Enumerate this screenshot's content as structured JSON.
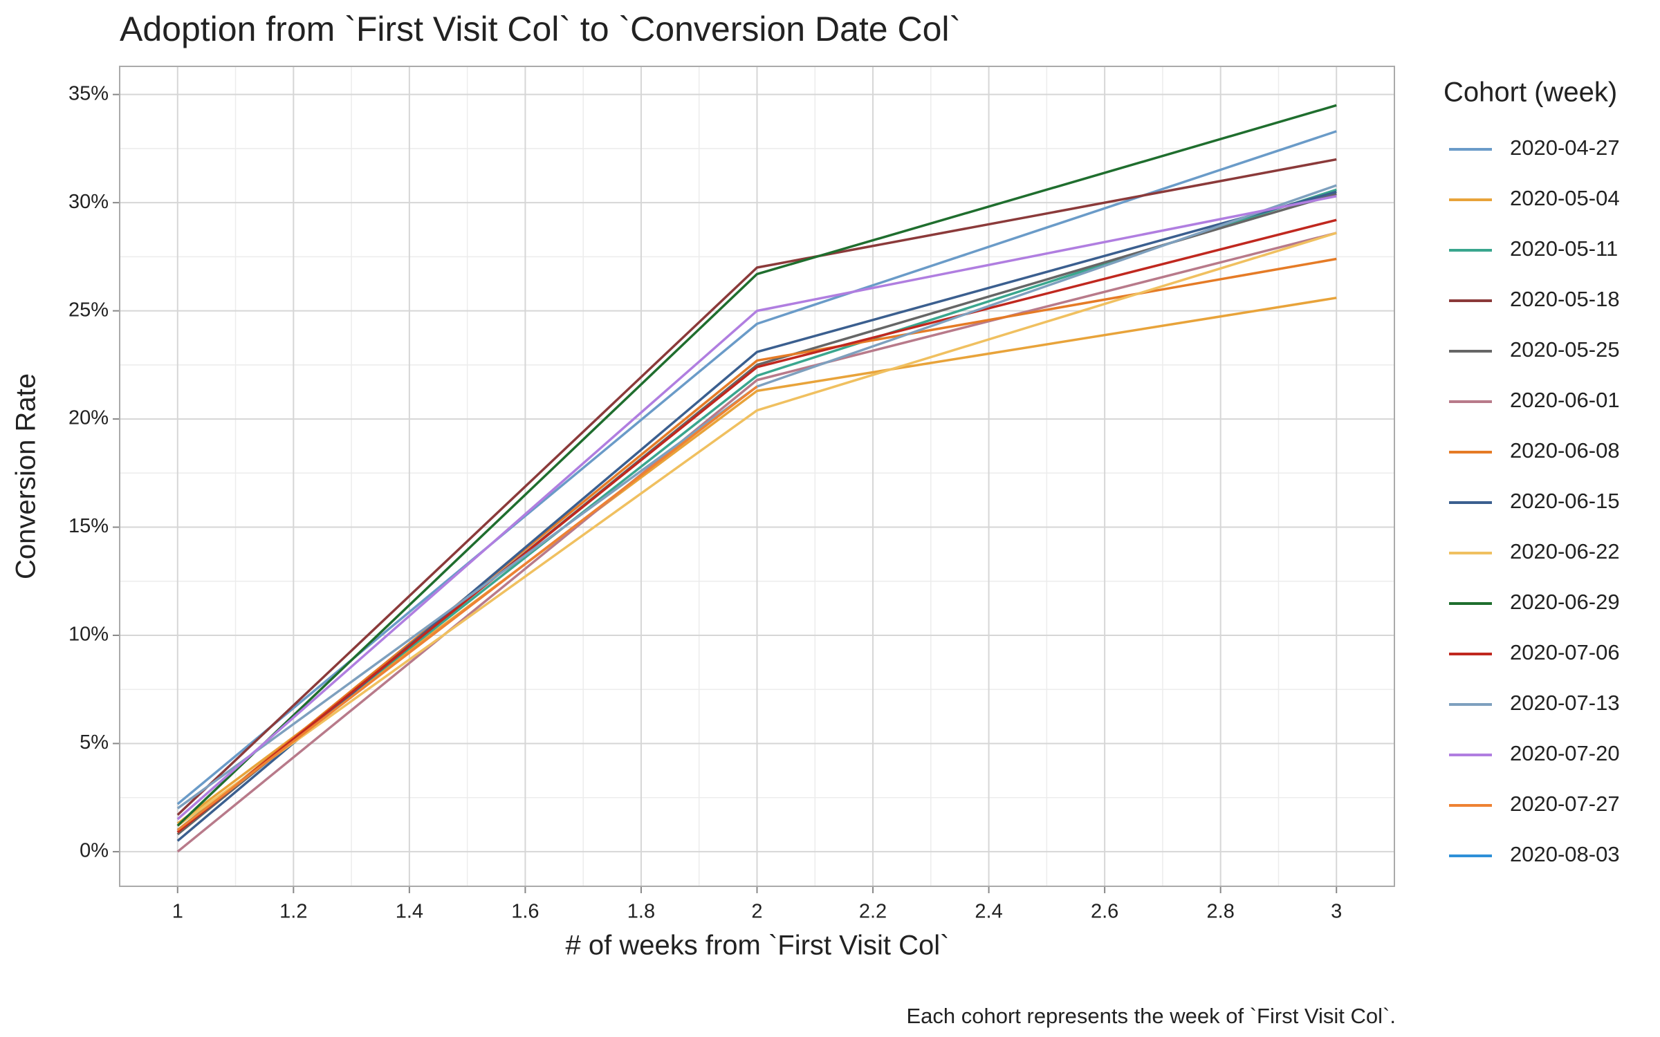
{
  "chart_data": {
    "type": "line",
    "title": "Adoption from `First Visit Col` to `Conversion Date Col`",
    "xlabel": "# of weeks from `First Visit Col`",
    "ylabel": "Conversion Rate",
    "caption": "Each cohort represents the week of `First Visit Col`.",
    "legend_title": "Cohort (week)",
    "legend": "right",
    "grid": true,
    "x": [
      1,
      2,
      3
    ],
    "xlim": [
      0.9,
      3.1
    ],
    "xticks": [
      1,
      1.2,
      1.4,
      1.6,
      1.8,
      2,
      2.2,
      2.4,
      2.6,
      2.8,
      3
    ],
    "ylim": [
      -1.6,
      36.3
    ],
    "yticks": [
      {
        "value": 0,
        "label": "0%"
      },
      {
        "value": 5,
        "label": "5%"
      },
      {
        "value": 10,
        "label": "10%"
      },
      {
        "value": 15,
        "label": "15%"
      },
      {
        "value": 20,
        "label": "20%"
      },
      {
        "value": 25,
        "label": "25%"
      },
      {
        "value": 30,
        "label": "30%"
      },
      {
        "value": 35,
        "label": "35%"
      }
    ],
    "series": [
      {
        "name": "2020-04-27",
        "color": "#6a9bc8",
        "values": [
          2.2,
          24.4,
          33.3
        ]
      },
      {
        "name": "2020-05-04",
        "color": "#e8a33a",
        "values": [
          1.3,
          21.3,
          25.6
        ]
      },
      {
        "name": "2020-05-11",
        "color": "#3aa68e",
        "values": [
          1.0,
          22.0,
          30.6
        ]
      },
      {
        "name": "2020-05-18",
        "color": "#8b3a3a",
        "values": [
          1.7,
          27.0,
          32.0
        ]
      },
      {
        "name": "2020-05-25",
        "color": "#666666",
        "values": [
          0.8,
          22.5,
          30.4
        ]
      },
      {
        "name": "2020-06-01",
        "color": "#b87a8a",
        "values": [
          0.0,
          21.8,
          28.6
        ]
      },
      {
        "name": "2020-06-08",
        "color": "#e57b26",
        "values": [
          0.9,
          22.7,
          27.4
        ]
      },
      {
        "name": "2020-06-15",
        "color": "#3b5f8f",
        "values": [
          0.5,
          23.1,
          30.5
        ]
      },
      {
        "name": "2020-06-22",
        "color": "#f0c060",
        "values": [
          1.2,
          20.4,
          28.6
        ]
      },
      {
        "name": "2020-06-29",
        "color": "#1f6e2e",
        "values": [
          1.2,
          26.7,
          34.5
        ]
      },
      {
        "name": "2020-07-06",
        "color": "#c0281f",
        "values": [
          0.9,
          22.4,
          29.2
        ]
      },
      {
        "name": "2020-07-13",
        "color": "#7ea0be",
        "values": [
          2.0,
          21.5,
          30.8
        ]
      },
      {
        "name": "2020-07-20",
        "color": "#b07ee0",
        "values": [
          1.5,
          25.0,
          30.3
        ]
      },
      {
        "name": "2020-07-27",
        "color": "#ee8233",
        "values": [
          1.0,
          21.5,
          null
        ]
      },
      {
        "name": "2020-08-03",
        "color": "#2e90d8",
        "values": [
          1.1,
          null,
          null
        ]
      }
    ]
  }
}
